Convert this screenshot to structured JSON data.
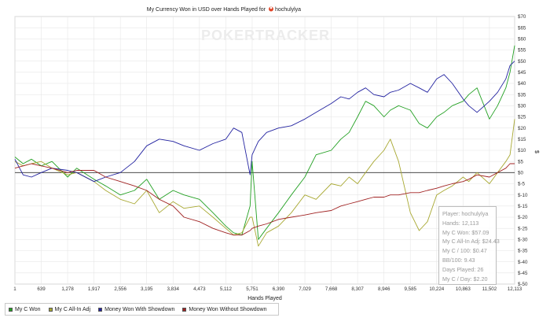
{
  "chart_data": {
    "type": "line",
    "title": "My Currency Won in USD over Hands Played for",
    "player": "hochulylya",
    "xlabel": "Hands Played",
    "ylabel": "$",
    "watermark": "POKERTRACKER",
    "xlim": [
      1,
      12113
    ],
    "ylim": [
      -50,
      70
    ],
    "xticks": [
      1,
      639,
      1278,
      1917,
      2556,
      3195,
      3834,
      4473,
      5112,
      5751,
      6390,
      7029,
      7668,
      8307,
      8946,
      9585,
      10224,
      10863,
      11502,
      12113
    ],
    "yticks": [
      70,
      65,
      60,
      55,
      50,
      45,
      40,
      35,
      30,
      25,
      20,
      15,
      10,
      5,
      0,
      -5,
      -10,
      -15,
      -20,
      -25,
      -30,
      -35,
      -40,
      -45,
      -50
    ],
    "ytick_labels": [
      "$70",
      "$65",
      "$60",
      "$55",
      "$50",
      "$45",
      "$40",
      "$35",
      "$30",
      "$25",
      "$20",
      "$15",
      "$10",
      "$5",
      "$0",
      "$-5",
      "$-10",
      "$-15",
      "$-20",
      "$-25",
      "$-30",
      "$-35",
      "$-40",
      "$-45",
      "$-50"
    ],
    "grid": true,
    "legend_position": "bottom-left",
    "series": [
      {
        "name": "My C Won",
        "color": "#22a022",
        "x": [
          1,
          200,
          400,
          639,
          900,
          1278,
          1500,
          1917,
          2200,
          2556,
          2900,
          3195,
          3500,
          3834,
          4100,
          4473,
          4800,
          5112,
          5300,
          5500,
          5700,
          5751,
          5900,
          6100,
          6390,
          6700,
          7029,
          7300,
          7668,
          7900,
          8100,
          8307,
          8500,
          8700,
          8946,
          9100,
          9300,
          9585,
          9800,
          10000,
          10224,
          10400,
          10600,
          10863,
          11000,
          11200,
          11502,
          11700,
          11900,
          12000,
          12113
        ],
        "y": [
          7,
          4,
          6,
          3,
          5,
          -2,
          2,
          -3,
          -6,
          -10,
          -8,
          -3,
          -12,
          -8,
          -10,
          -12,
          -18,
          -24,
          -27,
          -28,
          -15,
          5,
          -30,
          -25,
          -18,
          -10,
          -2,
          8,
          10,
          15,
          18,
          25,
          32,
          30,
          25,
          28,
          30,
          28,
          22,
          20,
          25,
          27,
          30,
          32,
          35,
          38,
          24,
          30,
          38,
          45,
          57
        ]
      },
      {
        "name": "My C All-In Adj",
        "color": "#a8a832",
        "x": [
          1,
          200,
          400,
          639,
          900,
          1278,
          1500,
          1917,
          2200,
          2556,
          2900,
          3195,
          3500,
          3834,
          4100,
          4473,
          4800,
          5112,
          5300,
          5500,
          5700,
          5751,
          5900,
          6100,
          6390,
          6700,
          7029,
          7300,
          7668,
          7900,
          8100,
          8307,
          8500,
          8700,
          8946,
          9100,
          9300,
          9585,
          9800,
          10000,
          10224,
          10400,
          10600,
          10863,
          11000,
          11200,
          11502,
          11700,
          11900,
          12000,
          12113
        ],
        "y": [
          5,
          3,
          4,
          5,
          2,
          -1,
          0,
          -4,
          -8,
          -12,
          -14,
          -8,
          -18,
          -13,
          -16,
          -15,
          -20,
          -25,
          -28,
          -27,
          -20,
          -20,
          -33,
          -27,
          -24,
          -18,
          -10,
          -12,
          -5,
          -6,
          -2,
          -5,
          0,
          5,
          10,
          15,
          5,
          -18,
          -26,
          -22,
          -10,
          -8,
          -6,
          -2,
          -4,
          0,
          -5,
          0,
          5,
          8,
          24
        ]
      },
      {
        "name": "Money Won With Showdown",
        "color": "#2222a0",
        "x": [
          1,
          200,
          400,
          639,
          900,
          1278,
          1500,
          1917,
          2200,
          2556,
          2900,
          3195,
          3500,
          3834,
          4100,
          4473,
          4800,
          5112,
          5300,
          5500,
          5700,
          5751,
          5900,
          6100,
          6390,
          6700,
          7029,
          7300,
          7668,
          7900,
          8100,
          8307,
          8500,
          8700,
          8946,
          9100,
          9300,
          9585,
          9800,
          10000,
          10224,
          10400,
          10600,
          10863,
          11000,
          11200,
          11502,
          11700,
          11900,
          12000,
          12113
        ],
        "y": [
          6,
          -1,
          -2,
          0,
          2,
          1,
          0,
          -4,
          -2,
          0,
          5,
          12,
          15,
          14,
          12,
          10,
          13,
          15,
          20,
          18,
          -1,
          8,
          14,
          18,
          20,
          21,
          24,
          27,
          31,
          34,
          33,
          36,
          38,
          35,
          34,
          36,
          37,
          40,
          38,
          36,
          42,
          44,
          40,
          33,
          30,
          27,
          32,
          36,
          42,
          48,
          50
        ]
      },
      {
        "name": "Money Won Without Showdown",
        "color": "#a02222",
        "x": [
          1,
          200,
          400,
          639,
          900,
          1278,
          1500,
          1917,
          2200,
          2556,
          2900,
          3195,
          3500,
          3834,
          4100,
          4473,
          4800,
          5112,
          5300,
          5500,
          5700,
          5751,
          5900,
          6100,
          6390,
          6700,
          7029,
          7300,
          7668,
          7900,
          8100,
          8307,
          8500,
          8700,
          8946,
          9100,
          9300,
          9585,
          9800,
          10000,
          10224,
          10400,
          10600,
          10863,
          11000,
          11200,
          11502,
          11700,
          11900,
          12000,
          12113
        ],
        "y": [
          2,
          3,
          4,
          3,
          2,
          0,
          1,
          1,
          -2,
          -4,
          -6,
          -8,
          -12,
          -15,
          -20,
          -22,
          -25,
          -27,
          -28,
          -28,
          -26,
          -25,
          -24,
          -23,
          -21,
          -20,
          -19,
          -18,
          -17,
          -15,
          -14,
          -13,
          -12,
          -11,
          -11,
          -10,
          -10,
          -9,
          -9,
          -8,
          -7,
          -6,
          -5,
          -4,
          -3,
          -1,
          -2,
          0,
          2,
          4,
          4
        ]
      }
    ]
  },
  "stats": {
    "player": "Player: hochulylya",
    "hands": "Hands: 12,113",
    "won": "My C Won: $57.09",
    "allin_adj": "My C All-In Adj: $24.43",
    "per100": "My C / 100: $0.47",
    "bb100": "BB/100: 9.43",
    "days": "Days Played: 26",
    "per_day": "My C / Day: $2.20"
  }
}
